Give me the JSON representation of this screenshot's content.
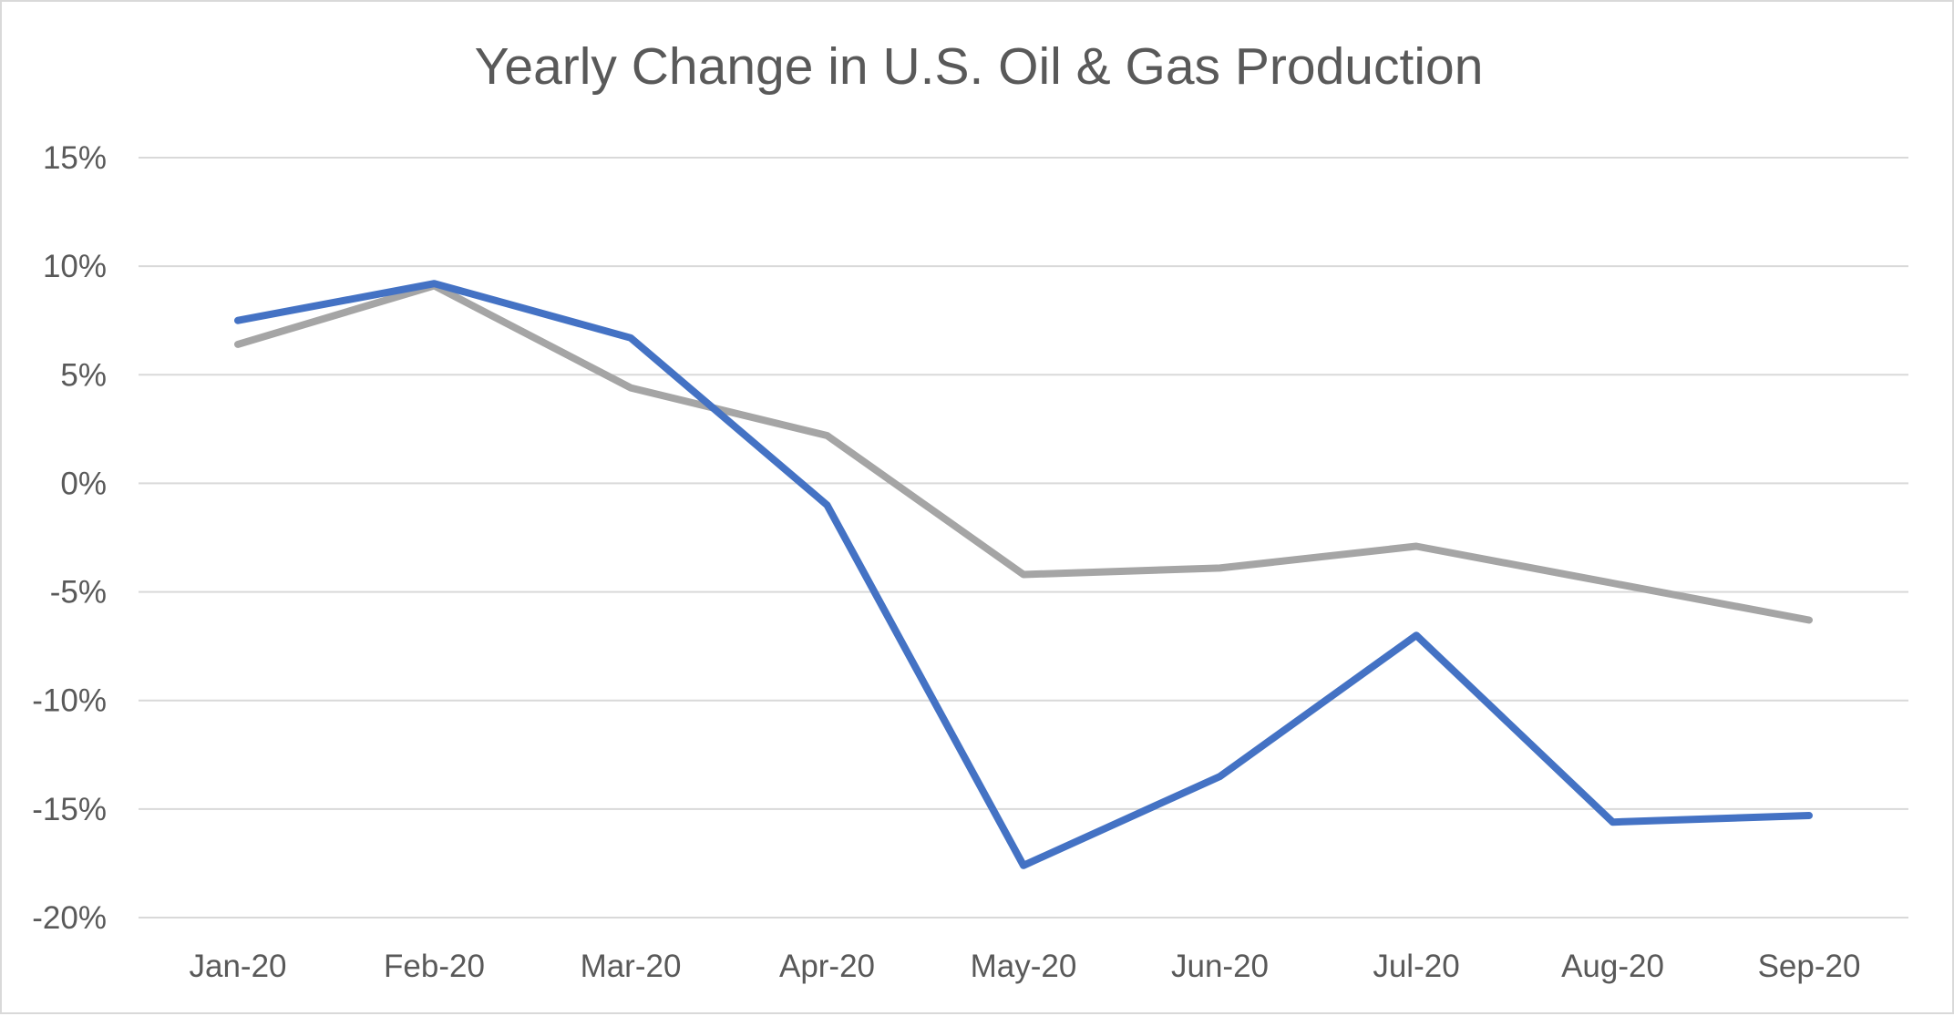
{
  "chart_data": {
    "type": "line",
    "title": "Yearly Change in U.S. Oil & Gas Production",
    "xlabel": "",
    "ylabel": "",
    "categories": [
      "Jan-20",
      "Feb-20",
      "Mar-20",
      "Apr-20",
      "May-20",
      "Jun-20",
      "Jul-20",
      "Aug-20",
      "Sep-20"
    ],
    "series": [
      {
        "color": "#4472c4",
        "values": [
          7.5,
          9.2,
          6.7,
          -1.0,
          -17.6,
          -13.5,
          -7.0,
          -15.6,
          -15.3
        ]
      },
      {
        "color": "#a5a5a5",
        "values": [
          6.4,
          9.1,
          4.4,
          2.2,
          -4.2,
          -3.9,
          -2.9,
          -4.6,
          -6.3
        ]
      }
    ],
    "ylim": [
      -20,
      15
    ],
    "yticks": [
      15,
      10,
      5,
      0,
      -5,
      -10,
      -15,
      -20
    ],
    "ytick_labels": [
      "15%",
      "10%",
      "5%",
      "0%",
      "-5%",
      "-10%",
      "-15%",
      "-20%"
    ],
    "grid": true,
    "gridline_color": "#d9d9d9",
    "legend": "none"
  }
}
